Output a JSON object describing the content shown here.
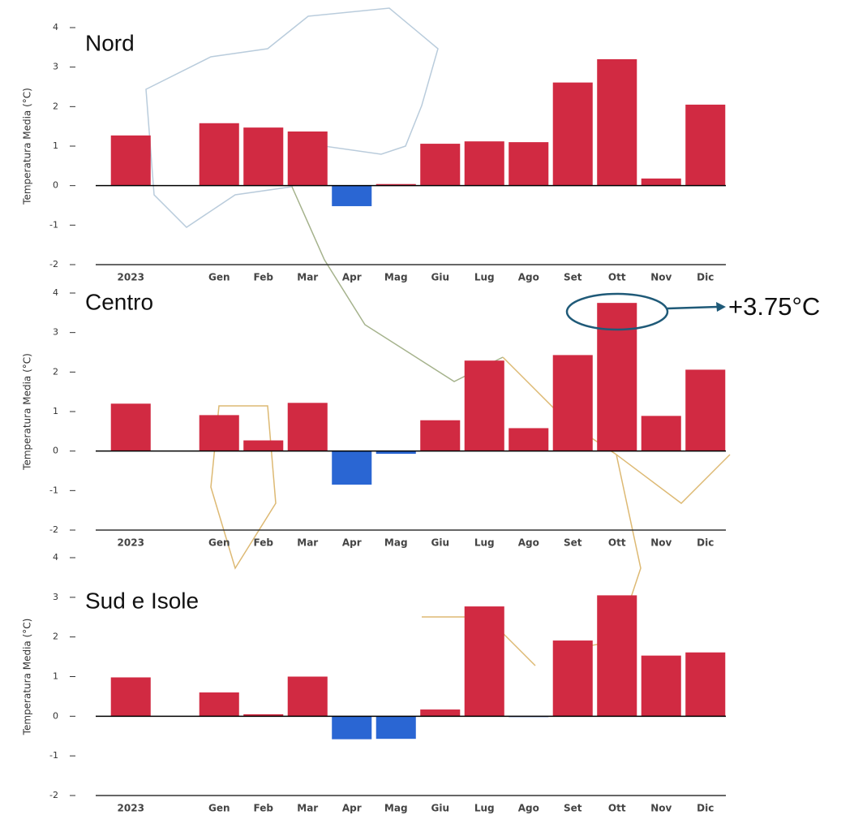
{
  "chart_data": [
    {
      "type": "bar",
      "title": "Nord",
      "ylabel": "Temperatura Media (°C)",
      "categories": [
        "2023",
        null,
        "Gen",
        "Feb",
        "Mar",
        "Apr",
        "Mag",
        "Giu",
        "Lug",
        "Ago",
        "Set",
        "Ott",
        "Nov",
        "Dic"
      ],
      "values": [
        1.27,
        null,
        1.58,
        1.47,
        1.37,
        -0.52,
        0.04,
        1.06,
        1.12,
        1.1,
        2.61,
        3.2,
        0.18,
        2.05
      ],
      "color": "#d12a42",
      "negative_color": "#2a66d3",
      "ylim": [
        -2,
        4
      ],
      "yticks": [
        -2,
        -1,
        0,
        1,
        2,
        3,
        4
      ]
    },
    {
      "type": "bar",
      "title": "Centro",
      "ylabel": "Temperatura Media (°C)",
      "categories": [
        "2023",
        null,
        "Gen",
        "Feb",
        "Mar",
        "Apr",
        "Mag",
        "Giu",
        "Lug",
        "Ago",
        "Set",
        "Ott",
        "Nov",
        "Dic"
      ],
      "values": [
        1.2,
        null,
        0.91,
        0.27,
        1.22,
        -0.85,
        -0.07,
        0.78,
        2.29,
        0.58,
        2.43,
        3.75,
        0.89,
        2.06
      ],
      "color": "#d12a42",
      "negative_color": "#2a66d3",
      "ylim": [
        -2,
        4
      ],
      "yticks": [
        -2,
        -1,
        0,
        1,
        2,
        3,
        4
      ],
      "annotation": "+3.75°C"
    },
    {
      "type": "bar",
      "title": "Sud e Isole",
      "ylabel": "Temperatura Media (°C)",
      "categories": [
        "2023",
        null,
        "Gen",
        "Feb",
        "Mar",
        "Apr",
        "Mag",
        "Giu",
        "Lug",
        "Ago",
        "Set",
        "Ott",
        "Nov",
        "Dic"
      ],
      "values": [
        0.98,
        null,
        0.6,
        0.05,
        1.0,
        -0.58,
        -0.57,
        0.17,
        2.77,
        -0.02,
        1.91,
        3.05,
        1.53,
        1.61
      ],
      "color": "#d12a42",
      "negative_color": "#2a66d3",
      "ylim": [
        -2,
        4
      ],
      "yticks": [
        -2,
        -1,
        0,
        1,
        2,
        3,
        4
      ]
    }
  ]
}
